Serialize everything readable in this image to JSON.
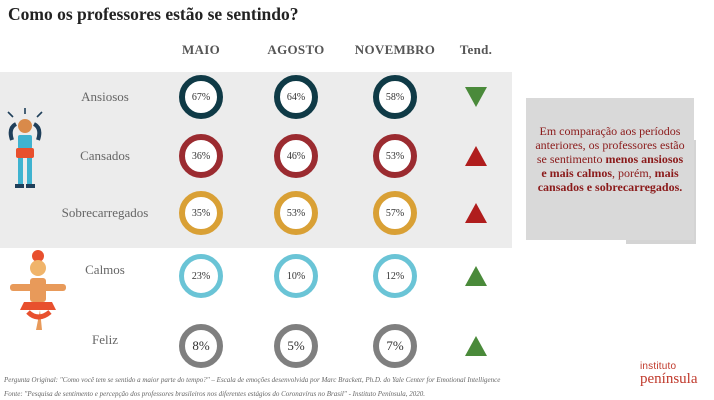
{
  "title": "Como os professores estão se sentindo?",
  "columns": [
    "MAIO",
    "AGOSTO",
    "NOVEMBRO",
    "Tend."
  ],
  "colors": {
    "ansiosos": "#0f3a46",
    "cansados": "#9b2b30",
    "sobrecarregados": "#d9a035",
    "calmos": "#6ac4d6",
    "feliz": "#7f7f7f",
    "trend_down": "#4a8a3a",
    "trend_up": "#b01d1d",
    "trend_up_green": "#4a8a3a",
    "band": "#ececec",
    "note_text": "#8b1a1a"
  },
  "chart_data": {
    "type": "table",
    "title": "Como os professores estão se sentindo?",
    "columns": [
      "MAIO",
      "AGOSTO",
      "NOVEMBRO"
    ],
    "unit": "%",
    "rows": [
      {
        "label": "Ansiosos",
        "values": [
          "67%",
          "64%",
          "58%"
        ],
        "trend": "down"
      },
      {
        "label": "Cansados",
        "values": [
          "36%",
          "46%",
          "53%"
        ],
        "trend": "up"
      },
      {
        "label": "Sobrecarregados",
        "values": [
          "35%",
          "53%",
          "57%"
        ],
        "trend": "up"
      },
      {
        "label": "Calmos",
        "values": [
          "23%",
          "10%",
          "12%"
        ],
        "trend": "up"
      },
      {
        "label": "Feliz",
        "values": [
          "8%",
          "5%",
          "7%"
        ],
        "trend": "up"
      }
    ]
  },
  "note": {
    "part1": "Em comparação aos períodos anteriores, os professores estão se sentimento ",
    "bold1": "menos ansiosos e mais calmos",
    "part2": ", porém, ",
    "bold2": "mais cansados e sobrecarregados."
  },
  "footer": {
    "line1": "Pergunta Original: \"Como você tem se sentido a maior parte do tempo?\" – Escala de emoções desenvolvida por Marc Brackett, Ph.D. do Yale Center for Emotional Intelligence",
    "line2": "Fonte: \"Pesquisa de sentimento e percepção dos professores brasileiros nos diferentes estágios do Coronavírus no Brasil\" - Instituto Península, 2020."
  },
  "logo": {
    "line1": "instituto",
    "line2": "península"
  },
  "icons": [
    "anxious-person-icon",
    "meditating-person-icon"
  ]
}
